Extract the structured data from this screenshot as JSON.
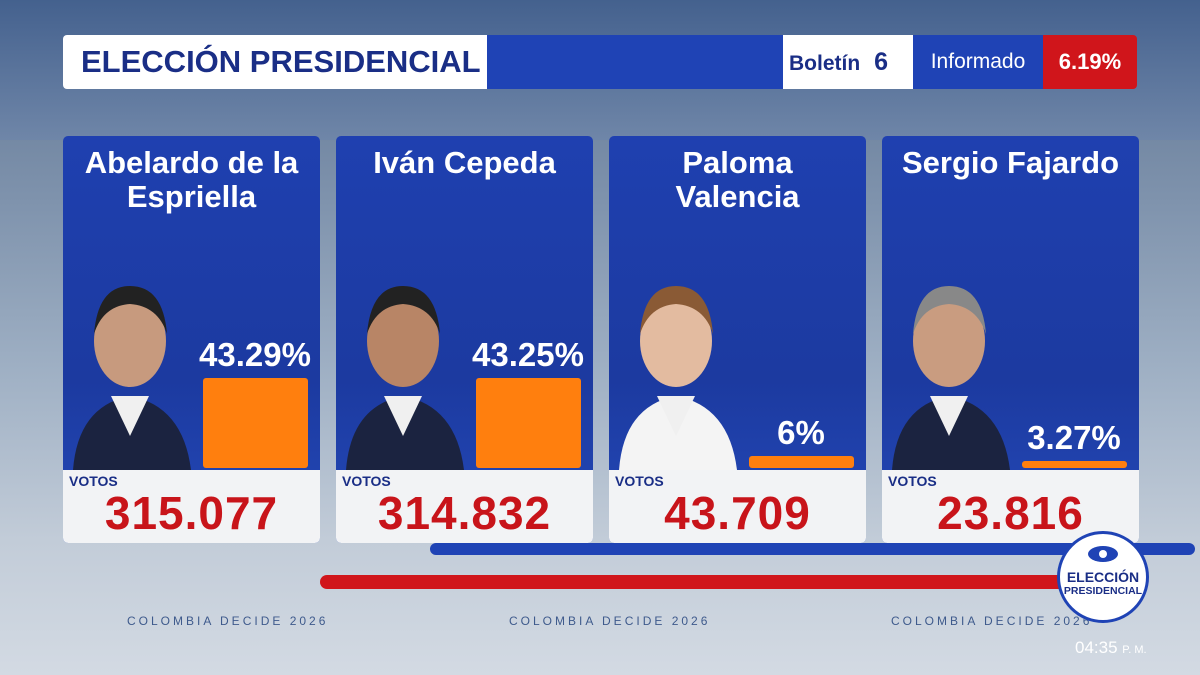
{
  "header": {
    "title": "ELECCIÓN PRESIDENCIAL",
    "bulletin_label": "Boletín",
    "bulletin": "6",
    "reported_label": "Informado",
    "reported": "6.19%"
  },
  "candidates": [
    {
      "name": "Abelardo de la Espriella",
      "percent": 43.29,
      "percent_label": "43.29%",
      "votes_label": "VOTOS",
      "votes": "315.077"
    },
    {
      "name": "Iván Cepeda",
      "percent": 43.25,
      "percent_label": "43.25%",
      "votes_label": "VOTOS",
      "votes": "314.832"
    },
    {
      "name": "Paloma Valencia",
      "percent": 6,
      "percent_label": "6%",
      "votes_label": "VOTOS",
      "votes": "43.709"
    },
    {
      "name": "Sergio Fajardo",
      "percent": 3.27,
      "percent_label": "3.27%",
      "votes_label": "VOTOS",
      "votes": "23.816"
    }
  ],
  "footer": {
    "slogans": [
      "COLOMBIA DECIDE 2026",
      "COLOMBIA DECIDE 2026",
      "COLOMBIA DECIDE 2026"
    ],
    "logo_line1": "ELECCIÓN",
    "logo_line2": "PRESIDENCIAL",
    "time": "04:35",
    "time_suffix": "P. M."
  }
}
